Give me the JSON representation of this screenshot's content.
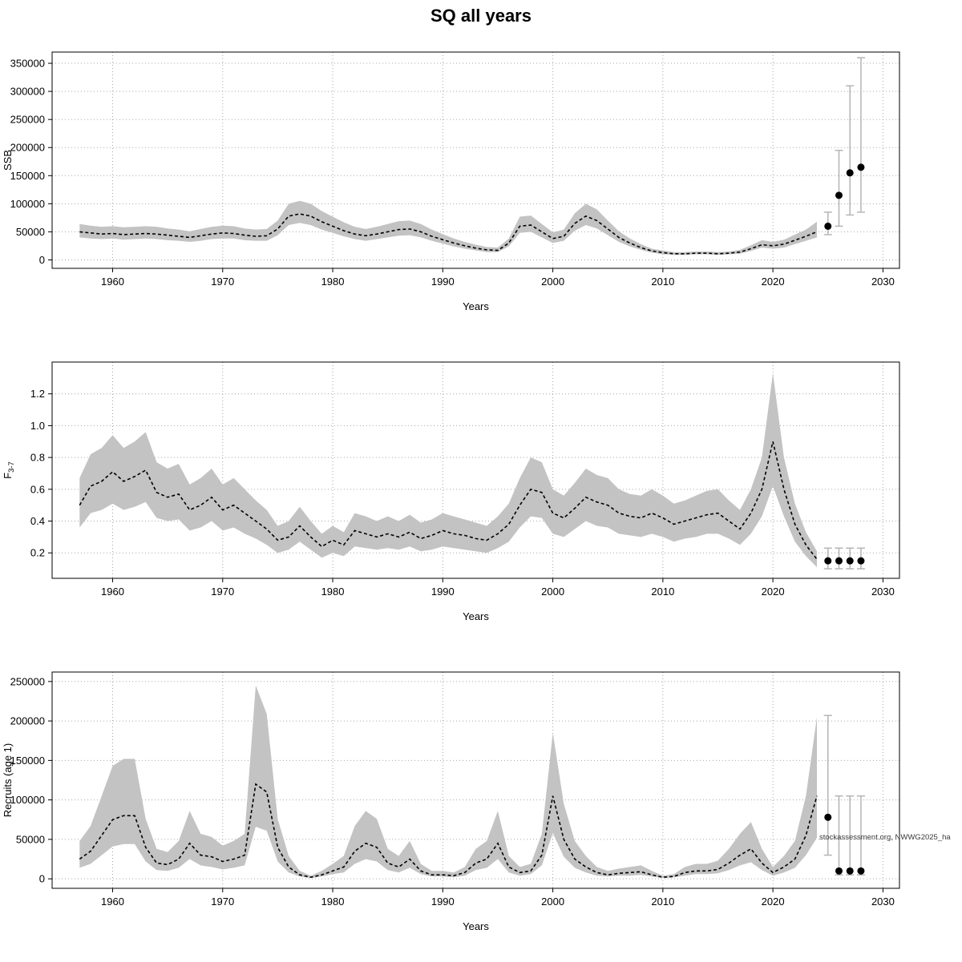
{
  "title": "SQ all years",
  "watermark": "stockassessment.org, NWWG2025_ha",
  "colors": {
    "band": "#c3c3c3",
    "line": "#000000",
    "grid": "#a6a6a6",
    "errorbar": "#b5b5b5",
    "dot": "#000000"
  },
  "chart_data": [
    {
      "type": "line",
      "name": "ssb",
      "title": "",
      "xlabel": "Years",
      "ylabel": "SSB",
      "ylabel_sub": "",
      "legend": "none",
      "grid": "dotted",
      "year_start": 1957,
      "year_end": 2024,
      "xlim": [
        1954.5,
        2031.5
      ],
      "ylim": [
        -15000,
        370000
      ],
      "xticks": [
        1960,
        1970,
        1980,
        1990,
        2000,
        2010,
        2020,
        2030
      ],
      "xtick_labels": [
        "1960",
        "1970",
        "1980",
        "1990",
        "2000",
        "2010",
        "2020",
        "2030"
      ],
      "yticks": [
        0,
        50000,
        100000,
        150000,
        200000,
        250000,
        300000,
        350000
      ],
      "ytick_labels": [
        "0",
        "50000",
        "100000",
        "150000",
        "200000",
        "250000",
        "300000",
        "350000"
      ],
      "median": [
        50000,
        48000,
        46000,
        47000,
        45000,
        46000,
        47000,
        46000,
        44000,
        42000,
        40000,
        43000,
        46000,
        48000,
        47000,
        44000,
        42000,
        43000,
        55000,
        78000,
        82000,
        78000,
        68000,
        60000,
        52000,
        46000,
        43000,
        46000,
        50000,
        54000,
        55000,
        50000,
        42000,
        36000,
        30000,
        25000,
        21000,
        18000,
        17000,
        30000,
        60000,
        62000,
        50000,
        38000,
        42000,
        65000,
        78000,
        70000,
        55000,
        40000,
        30000,
        22000,
        16000,
        13000,
        11000,
        11000,
        12000,
        12000,
        11000,
        12000,
        14000,
        20000,
        27000,
        25000,
        28000,
        35000,
        42000,
        50000
      ],
      "lo": [
        40000,
        38000,
        37000,
        38000,
        36000,
        37000,
        38000,
        37000,
        35000,
        34000,
        32000,
        34000,
        37000,
        38000,
        38000,
        35000,
        34000,
        34000,
        44000,
        62000,
        66000,
        62000,
        54000,
        48000,
        42000,
        37000,
        34000,
        37000,
        40000,
        43000,
        44000,
        40000,
        34000,
        29000,
        24000,
        20000,
        17000,
        14000,
        14000,
        24000,
        48000,
        50000,
        40000,
        30000,
        34000,
        52000,
        62000,
        56000,
        44000,
        32000,
        24000,
        18000,
        13000,
        10000,
        9000,
        9000,
        10000,
        10000,
        9000,
        10000,
        11000,
        16000,
        22000,
        20000,
        22000,
        28000,
        34000,
        40000
      ],
      "hi": [
        64000,
        61000,
        59000,
        60000,
        58000,
        59000,
        60000,
        59000,
        56000,
        54000,
        51000,
        55000,
        59000,
        61000,
        60000,
        56000,
        54000,
        55000,
        70000,
        100000,
        105000,
        100000,
        87000,
        77000,
        67000,
        59000,
        55000,
        59000,
        64000,
        69000,
        70000,
        64000,
        54000,
        46000,
        38000,
        32000,
        27000,
        23000,
        22000,
        38000,
        77000,
        79000,
        64000,
        49000,
        54000,
        83000,
        100000,
        90000,
        70000,
        51000,
        38000,
        28000,
        20000,
        17000,
        14000,
        14000,
        15000,
        15000,
        14000,
        15000,
        18000,
        26000,
        35000,
        32000,
        36000,
        45000,
        54000,
        68000
      ],
      "forecast": [
        {
          "year": 2025,
          "value": 60000,
          "lo": 45000,
          "hi": 85000
        },
        {
          "year": 2026,
          "value": 115000,
          "lo": 60000,
          "hi": 195000
        },
        {
          "year": 2027,
          "value": 155000,
          "lo": 80000,
          "hi": 310000
        },
        {
          "year": 2028,
          "value": 165000,
          "lo": 85000,
          "hi": 360000
        }
      ]
    },
    {
      "type": "line",
      "name": "fishing-mortality",
      "title": "",
      "xlabel": "Years",
      "ylabel": "F",
      "ylabel_sub": "3-7",
      "legend": "none",
      "grid": "dotted",
      "year_start": 1957,
      "year_end": 2024,
      "xlim": [
        1954.5,
        2031.5
      ],
      "ylim": [
        0.04,
        1.4
      ],
      "xticks": [
        1960,
        1970,
        1980,
        1990,
        2000,
        2010,
        2020,
        2030
      ],
      "xtick_labels": [
        "1960",
        "1970",
        "1980",
        "1990",
        "2000",
        "2010",
        "2020",
        "2030"
      ],
      "yticks": [
        0.2,
        0.4,
        0.6,
        0.8,
        1.0,
        1.2
      ],
      "ytick_labels": [
        "0.2",
        "0.4",
        "0.6",
        "0.8",
        "1.0",
        "1.2"
      ],
      "median": [
        0.5,
        0.62,
        0.65,
        0.71,
        0.65,
        0.68,
        0.72,
        0.58,
        0.55,
        0.57,
        0.47,
        0.5,
        0.55,
        0.47,
        0.5,
        0.45,
        0.4,
        0.35,
        0.28,
        0.3,
        0.37,
        0.3,
        0.24,
        0.28,
        0.25,
        0.34,
        0.32,
        0.3,
        0.32,
        0.3,
        0.33,
        0.29,
        0.31,
        0.34,
        0.32,
        0.31,
        0.29,
        0.28,
        0.32,
        0.38,
        0.5,
        0.6,
        0.58,
        0.45,
        0.42,
        0.48,
        0.55,
        0.52,
        0.5,
        0.45,
        0.43,
        0.42,
        0.45,
        0.42,
        0.38,
        0.4,
        0.42,
        0.44,
        0.45,
        0.4,
        0.35,
        0.45,
        0.6,
        0.9,
        0.6,
        0.38,
        0.25,
        0.16
      ],
      "lo": [
        0.36,
        0.45,
        0.47,
        0.51,
        0.47,
        0.49,
        0.52,
        0.42,
        0.4,
        0.41,
        0.34,
        0.36,
        0.4,
        0.34,
        0.36,
        0.32,
        0.29,
        0.25,
        0.2,
        0.22,
        0.27,
        0.22,
        0.17,
        0.2,
        0.18,
        0.24,
        0.23,
        0.22,
        0.23,
        0.22,
        0.24,
        0.21,
        0.22,
        0.24,
        0.23,
        0.22,
        0.21,
        0.2,
        0.23,
        0.27,
        0.36,
        0.43,
        0.42,
        0.32,
        0.3,
        0.35,
        0.4,
        0.37,
        0.36,
        0.32,
        0.31,
        0.3,
        0.32,
        0.3,
        0.27,
        0.29,
        0.3,
        0.32,
        0.32,
        0.29,
        0.25,
        0.32,
        0.43,
        0.62,
        0.43,
        0.27,
        0.18,
        0.11
      ],
      "hi": [
        0.67,
        0.82,
        0.86,
        0.94,
        0.86,
        0.9,
        0.96,
        0.77,
        0.73,
        0.76,
        0.63,
        0.67,
        0.73,
        0.63,
        0.67,
        0.6,
        0.53,
        0.47,
        0.37,
        0.4,
        0.49,
        0.4,
        0.32,
        0.37,
        0.33,
        0.45,
        0.43,
        0.4,
        0.43,
        0.4,
        0.44,
        0.39,
        0.41,
        0.45,
        0.43,
        0.41,
        0.39,
        0.37,
        0.43,
        0.51,
        0.67,
        0.8,
        0.77,
        0.6,
        0.56,
        0.64,
        0.73,
        0.69,
        0.67,
        0.6,
        0.57,
        0.56,
        0.6,
        0.56,
        0.51,
        0.53,
        0.56,
        0.59,
        0.6,
        0.53,
        0.47,
        0.6,
        0.8,
        1.33,
        0.8,
        0.51,
        0.33,
        0.21
      ],
      "forecast": [
        {
          "year": 2025,
          "value": 0.15,
          "lo": 0.1,
          "hi": 0.23
        },
        {
          "year": 2026,
          "value": 0.15,
          "lo": 0.1,
          "hi": 0.23
        },
        {
          "year": 2027,
          "value": 0.15,
          "lo": 0.1,
          "hi": 0.23
        },
        {
          "year": 2028,
          "value": 0.15,
          "lo": 0.1,
          "hi": 0.23
        }
      ]
    },
    {
      "type": "line",
      "name": "recruits",
      "title": "",
      "xlabel": "Years",
      "ylabel": "Recruits (age 1)",
      "ylabel_sub": "",
      "legend": "none",
      "grid": "dotted",
      "year_start": 1957,
      "year_end": 2024,
      "xlim": [
        1954.5,
        2031.5
      ],
      "ylim": [
        -12000,
        262000
      ],
      "xticks": [
        1960,
        1970,
        1980,
        1990,
        2000,
        2010,
        2020,
        2030
      ],
      "xtick_labels": [
        "1960",
        "1970",
        "1980",
        "1990",
        "2000",
        "2010",
        "2020",
        "2030"
      ],
      "yticks": [
        0,
        50000,
        100000,
        150000,
        200000,
        250000
      ],
      "ytick_labels": [
        "0",
        "50000",
        "100000",
        "150000",
        "200000",
        "250000"
      ],
      "median": [
        25000,
        35000,
        55000,
        75000,
        80000,
        80000,
        40000,
        20000,
        18000,
        25000,
        45000,
        30000,
        28000,
        22000,
        25000,
        30000,
        120000,
        110000,
        40000,
        15000,
        5000,
        2000,
        5000,
        10000,
        15000,
        35000,
        45000,
        40000,
        20000,
        15000,
        25000,
        10000,
        5000,
        5000,
        4000,
        8000,
        20000,
        25000,
        45000,
        15000,
        8000,
        10000,
        30000,
        105000,
        50000,
        25000,
        15000,
        8000,
        5000,
        7000,
        8000,
        9000,
        5000,
        2000,
        3000,
        8000,
        10000,
        10000,
        12000,
        20000,
        30000,
        38000,
        20000,
        8000,
        15000,
        25000,
        55000,
        105000
      ],
      "lo": [
        14000,
        19000,
        30000,
        41000,
        44000,
        44000,
        22000,
        11000,
        10000,
        14000,
        25000,
        17000,
        15000,
        12000,
        14000,
        17000,
        66000,
        61000,
        22000,
        8000,
        3000,
        1000,
        3000,
        6000,
        8000,
        19000,
        25000,
        22000,
        11000,
        8000,
        14000,
        6000,
        3000,
        3000,
        2000,
        4000,
        11000,
        14000,
        25000,
        8000,
        4000,
        6000,
        17000,
        58000,
        28000,
        14000,
        8000,
        4000,
        3000,
        4000,
        4000,
        5000,
        3000,
        1000,
        2000,
        4000,
        6000,
        6000,
        7000,
        11000,
        17000,
        21000,
        11000,
        4000,
        8000,
        14000,
        30000,
        52000
      ],
      "hi": [
        48000,
        67000,
        105000,
        143000,
        152000,
        152000,
        76000,
        38000,
        34000,
        48000,
        86000,
        57000,
        53000,
        42000,
        48000,
        57000,
        245000,
        209000,
        76000,
        29000,
        10000,
        4000,
        10000,
        19000,
        29000,
        67000,
        86000,
        76000,
        38000,
        29000,
        48000,
        19000,
        10000,
        10000,
        8000,
        15000,
        38000,
        48000,
        86000,
        29000,
        15000,
        19000,
        57000,
        185000,
        95000,
        48000,
        29000,
        15000,
        10000,
        13000,
        15000,
        17000,
        10000,
        4000,
        6000,
        15000,
        19000,
        19000,
        23000,
        38000,
        57000,
        72000,
        38000,
        15000,
        29000,
        48000,
        105000,
        205000
      ],
      "forecast": [
        {
          "year": 2025,
          "value": 78000,
          "lo": 30000,
          "hi": 207000
        },
        {
          "year": 2026,
          "value": 10000,
          "lo": 5000,
          "hi": 105000
        },
        {
          "year": 2027,
          "value": 10000,
          "lo": 5000,
          "hi": 105000
        },
        {
          "year": 2028,
          "value": 10000,
          "lo": 5000,
          "hi": 105000
        }
      ]
    }
  ]
}
